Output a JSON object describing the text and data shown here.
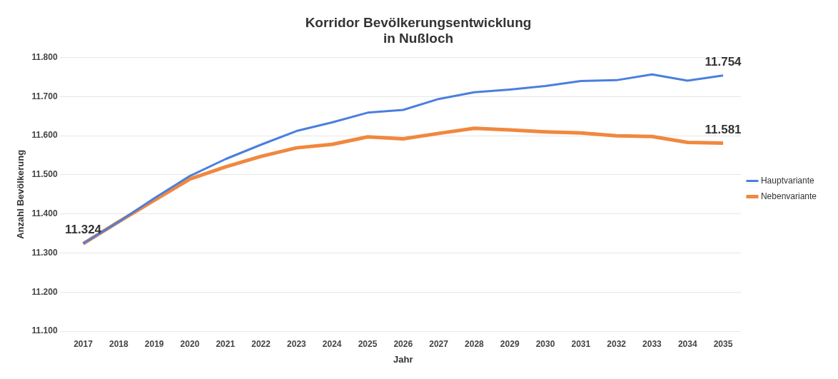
{
  "chart_data": {
    "type": "line",
    "title": "Korridor Bevölkerungsentwicklung\nin Nußloch",
    "xlabel": "Jahr",
    "ylabel": "Anzahl Bevölkerung",
    "categories": [
      "2017",
      "2018",
      "2019",
      "2020",
      "2021",
      "2022",
      "2023",
      "2024",
      "2025",
      "2026",
      "2027",
      "2028",
      "2029",
      "2030",
      "2031",
      "2032",
      "2033",
      "2034",
      "2035"
    ],
    "series": [
      {
        "name": "Hauptvariante",
        "color": "#4a7fde",
        "values": [
          11324,
          11380,
          11440,
          11497,
          11540,
          11577,
          11612,
          11634,
          11659,
          11666,
          11694,
          11711,
          11718,
          11727,
          11740,
          11742,
          11757,
          11741,
          11754
        ],
        "value_labels": [
          "11.324",
          null,
          null,
          null,
          null,
          null,
          null,
          null,
          null,
          null,
          null,
          null,
          null,
          null,
          null,
          null,
          null,
          null,
          "11.754"
        ]
      },
      {
        "name": "Nebenvariante",
        "color": "#f0883e",
        "values": [
          11324,
          11380,
          11435,
          11489,
          11520,
          11547,
          11569,
          11578,
          11597,
          11592,
          11606,
          11619,
          11615,
          11610,
          11607,
          11600,
          11598,
          11583,
          11581
        ],
        "value_labels": [
          null,
          null,
          null,
          null,
          null,
          null,
          null,
          null,
          null,
          null,
          null,
          null,
          null,
          null,
          null,
          null,
          null,
          null,
          "11.581"
        ]
      }
    ],
    "ylim": [
      11100,
      11800
    ],
    "yticks": [
      {
        "value": 11100,
        "label": "11.100"
      },
      {
        "value": 11200,
        "label": "11.200"
      },
      {
        "value": 11300,
        "label": "11.300"
      },
      {
        "value": 11400,
        "label": "11.400"
      },
      {
        "value": 11500,
        "label": "11.500"
      },
      {
        "value": 11600,
        "label": "11.600"
      },
      {
        "value": 11700,
        "label": "11.700"
      },
      {
        "value": 11800,
        "label": "11.800"
      }
    ],
    "grid": "y",
    "legend": "right",
    "marker": "none",
    "line_style": "solid"
  }
}
